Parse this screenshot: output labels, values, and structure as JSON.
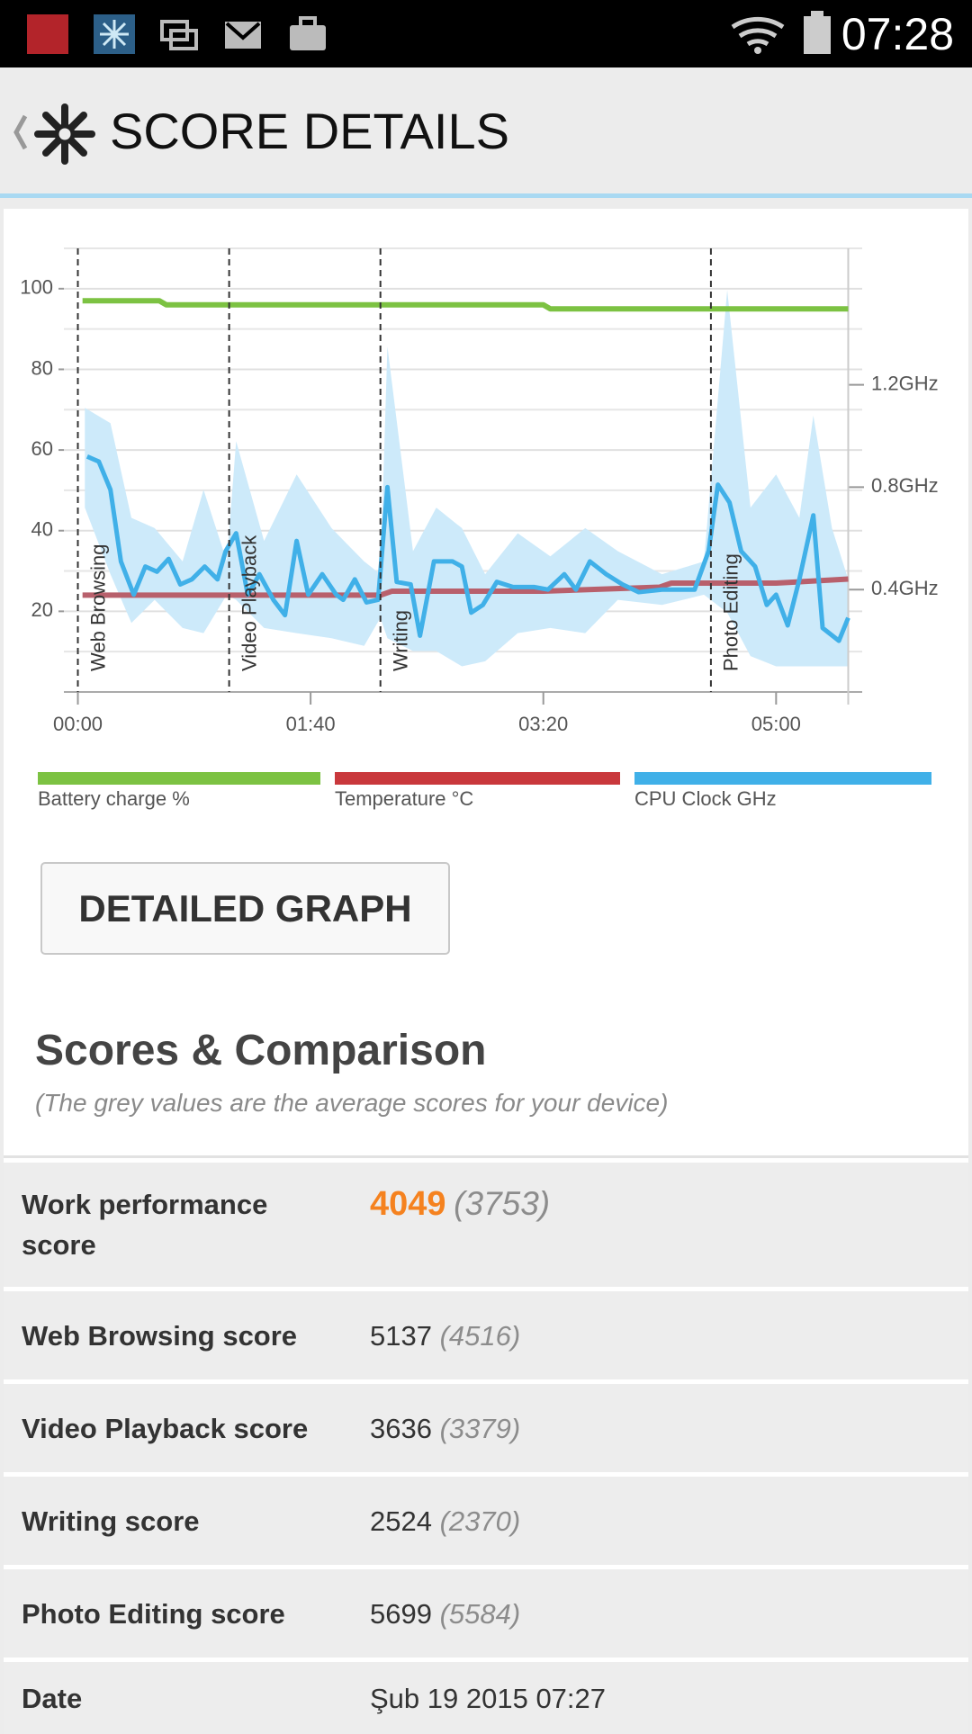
{
  "status_bar": {
    "time": "07:28"
  },
  "header": {
    "title": "SCORE DETAILS"
  },
  "chart_data": {
    "type": "line",
    "xlim": [
      -6,
      337
    ],
    "xticks": [
      {
        "value": 0,
        "label": "00:00"
      },
      {
        "value": 100,
        "label": "01:40"
      },
      {
        "value": 200,
        "label": "03:20"
      },
      {
        "value": 300,
        "label": "05:00"
      }
    ],
    "ylim": [
      0,
      110
    ],
    "yticks": [
      20,
      40,
      60,
      80,
      100
    ],
    "ygrid": [
      10,
      30,
      50,
      70,
      90,
      110
    ],
    "y2lim": [
      0,
      1.733
    ],
    "y2ticks": [
      {
        "value": 0.4,
        "label": "0.4GHz"
      },
      {
        "value": 0.8,
        "label": "0.8GHz"
      },
      {
        "value": 1.2,
        "label": "1.2GHz"
      }
    ],
    "grid": true,
    "annotations": [
      {
        "x": 0,
        "text": "Web Browsing"
      },
      {
        "x": 65,
        "text": "Video Playback"
      },
      {
        "x": 130,
        "text": "Writing"
      },
      {
        "x": 272,
        "text": "Photo Editing"
      }
    ],
    "series": [
      {
        "name": "Battery charge %",
        "color": "#7cc242",
        "x": [
          2,
          35,
          38,
          200,
          203,
          331
        ],
        "values": [
          97,
          97,
          96,
          96,
          95,
          95
        ]
      },
      {
        "name": "Temperature °C",
        "color": "#c9383c",
        "line_color": "#b8606c",
        "x": [
          2,
          130,
          135,
          200,
          250,
          255,
          300,
          331
        ],
        "values": [
          24,
          24,
          25,
          25,
          26,
          27,
          27,
          28
        ]
      },
      {
        "name": "CPU Clock GHz",
        "color": "#40b0e8",
        "axis": "y2",
        "x": [
          4,
          9,
          14,
          18.5,
          24,
          29,
          34,
          39,
          44,
          49,
          54.5,
          60,
          63.5,
          68,
          73,
          78,
          84,
          89,
          94,
          99,
          105,
          111,
          114,
          119,
          124,
          129,
          133,
          137,
          143,
          147,
          153,
          161,
          165,
          169,
          174,
          180,
          187,
          196,
          202,
          209,
          214,
          220,
          227,
          234,
          241,
          251,
          265,
          271,
          275,
          280,
          285,
          291,
          296,
          300,
          305,
          310,
          316,
          320,
          327,
          331
        ],
        "values": [
          0.92,
          0.9,
          0.79,
          0.51,
          0.38,
          0.49,
          0.47,
          0.52,
          0.42,
          0.44,
          0.49,
          0.44,
          0.55,
          0.62,
          0.38,
          0.46,
          0.36,
          0.3,
          0.59,
          0.38,
          0.46,
          0.38,
          0.36,
          0.44,
          0.35,
          0.36,
          0.8,
          0.43,
          0.42,
          0.22,
          0.51,
          0.51,
          0.49,
          0.31,
          0.34,
          0.43,
          0.41,
          0.41,
          0.4,
          0.46,
          0.4,
          0.51,
          0.46,
          0.42,
          0.39,
          0.4,
          0.4,
          0.55,
          0.81,
          0.74,
          0.55,
          0.49,
          0.34,
          0.38,
          0.26,
          0.44,
          0.69,
          0.25,
          0.2,
          0.29
        ],
        "band": {
          "color": "#cdeafa",
          "x": [
            3,
            14,
            23,
            33,
            45,
            54,
            64,
            68,
            80,
            94,
            109,
            123,
            130,
            133,
            144,
            154,
            165,
            175,
            189,
            203,
            218,
            232,
            251,
            269,
            279,
            289,
            300,
            310,
            316,
            324,
            331
          ],
          "high": [
            1.11,
            1.05,
            0.68,
            0.64,
            0.51,
            0.79,
            0.51,
            0.98,
            0.59,
            0.85,
            0.64,
            0.51,
            0.46,
            1.35,
            0.55,
            0.72,
            0.64,
            0.46,
            0.62,
            0.53,
            0.64,
            0.55,
            0.46,
            0.51,
            1.57,
            0.72,
            0.85,
            0.68,
            1.08,
            0.64,
            0.44
          ],
          "low": [
            0.72,
            0.46,
            0.27,
            0.36,
            0.25,
            0.23,
            0.38,
            0.36,
            0.25,
            0.23,
            0.21,
            0.18,
            0.29,
            0.21,
            0.16,
            0.16,
            0.1,
            0.12,
            0.23,
            0.25,
            0.23,
            0.36,
            0.34,
            0.38,
            0.31,
            0.14,
            0.1,
            0.1,
            0.1,
            0.1,
            0.1
          ]
        }
      }
    ]
  },
  "button": {
    "label": "DETAILED GRAPH"
  },
  "scores": {
    "title": "Scores & Comparison",
    "subtitle": "(The grey values are the average scores for your device)",
    "rows": [
      {
        "label": "Work performance score",
        "score": "4049",
        "average": "(3753)"
      },
      {
        "label": "Web Browsing score",
        "score": "5137",
        "average": "(4516)"
      },
      {
        "label": "Video Playback score",
        "score": "3636",
        "average": "(3379)"
      },
      {
        "label": "Writing score",
        "score": "2524",
        "average": "(2370)"
      },
      {
        "label": "Photo Editing score",
        "score": "5699",
        "average": "(5584)"
      },
      {
        "label": "Date",
        "value": "Şub 19 2015 07:27"
      }
    ]
  }
}
